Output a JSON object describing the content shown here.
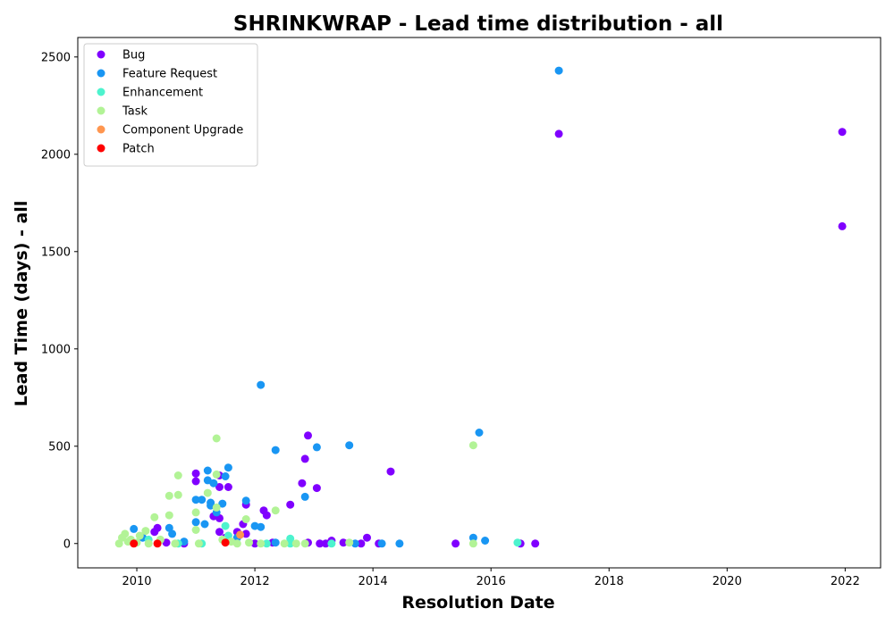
{
  "chart_data": {
    "type": "scatter",
    "title": "SHRINKWRAP - Lead time distribution - all",
    "xlabel": "Resolution Date",
    "ylabel": "Lead Time (days) - all",
    "xlim": [
      2009.0,
      2022.6
    ],
    "ylim": [
      -125,
      2600
    ],
    "xticks": [
      2010,
      2012,
      2014,
      2016,
      2018,
      2020,
      2022
    ],
    "yticks": [
      0,
      500,
      1000,
      1500,
      2000,
      2500
    ],
    "grid": false,
    "legend_position": "top-left",
    "series": [
      {
        "name": "Bug",
        "color": "#8000ff",
        "points": [
          [
            2010.3,
            60
          ],
          [
            2010.35,
            80
          ],
          [
            2010.5,
            5
          ],
          [
            2010.8,
            0
          ],
          [
            2011.0,
            360
          ],
          [
            2011.0,
            320
          ],
          [
            2011.3,
            140
          ],
          [
            2011.4,
            130
          ],
          [
            2011.4,
            290
          ],
          [
            2011.4,
            350
          ],
          [
            2011.4,
            60
          ],
          [
            2011.5,
            30
          ],
          [
            2011.55,
            290
          ],
          [
            2011.7,
            60
          ],
          [
            2011.8,
            100
          ],
          [
            2011.85,
            200
          ],
          [
            2011.85,
            50
          ],
          [
            2012.0,
            0
          ],
          [
            2012.15,
            170
          ],
          [
            2012.2,
            145
          ],
          [
            2012.3,
            5
          ],
          [
            2012.6,
            200
          ],
          [
            2012.8,
            310
          ],
          [
            2012.85,
            435
          ],
          [
            2012.9,
            555
          ],
          [
            2012.9,
            5
          ],
          [
            2013.05,
            285
          ],
          [
            2013.1,
            0
          ],
          [
            2013.2,
            0
          ],
          [
            2013.3,
            15
          ],
          [
            2013.5,
            5
          ],
          [
            2013.8,
            0
          ],
          [
            2013.9,
            30
          ],
          [
            2014.1,
            0
          ],
          [
            2014.3,
            370
          ],
          [
            2015.4,
            0
          ],
          [
            2016.5,
            0
          ],
          [
            2016.75,
            0
          ],
          [
            2017.15,
            2105
          ],
          [
            2021.95,
            2115
          ],
          [
            2021.95,
            1630
          ]
        ]
      },
      {
        "name": "Feature Request",
        "color": "#1996f3",
        "points": [
          [
            2009.95,
            75
          ],
          [
            2010.1,
            30
          ],
          [
            2010.55,
            80
          ],
          [
            2010.6,
            50
          ],
          [
            2010.8,
            10
          ],
          [
            2011.0,
            225
          ],
          [
            2011.0,
            110
          ],
          [
            2011.1,
            225
          ],
          [
            2011.15,
            100
          ],
          [
            2011.2,
            375
          ],
          [
            2011.2,
            325
          ],
          [
            2011.25,
            210
          ],
          [
            2011.25,
            195
          ],
          [
            2011.3,
            310
          ],
          [
            2011.35,
            160
          ],
          [
            2011.45,
            205
          ],
          [
            2011.5,
            345
          ],
          [
            2011.55,
            390
          ],
          [
            2011.7,
            30
          ],
          [
            2011.85,
            220
          ],
          [
            2012.0,
            90
          ],
          [
            2012.1,
            85
          ],
          [
            2012.1,
            815
          ],
          [
            2012.35,
            480
          ],
          [
            2012.35,
            5
          ],
          [
            2012.85,
            240
          ],
          [
            2013.05,
            495
          ],
          [
            2013.6,
            505
          ],
          [
            2013.7,
            0
          ],
          [
            2014.15,
            0
          ],
          [
            2014.45,
            0
          ],
          [
            2015.7,
            30
          ],
          [
            2015.8,
            570
          ],
          [
            2015.9,
            15
          ],
          [
            2017.15,
            2430
          ]
        ]
      },
      {
        "name": "Enhancement",
        "color": "#4df3ce",
        "points": [
          [
            2010.2,
            20
          ],
          [
            2010.7,
            0
          ],
          [
            2011.1,
            0
          ],
          [
            2011.5,
            90
          ],
          [
            2011.55,
            40
          ],
          [
            2012.2,
            0
          ],
          [
            2012.6,
            25
          ],
          [
            2012.6,
            0
          ],
          [
            2013.3,
            0
          ],
          [
            2016.45,
            5
          ]
        ]
      },
      {
        "name": "Task",
        "color": "#b2f396",
        "points": [
          [
            2009.7,
            0
          ],
          [
            2009.75,
            30
          ],
          [
            2009.8,
            50
          ],
          [
            2009.85,
            10
          ],
          [
            2009.9,
            20
          ],
          [
            2010.0,
            5
          ],
          [
            2010.05,
            40
          ],
          [
            2010.15,
            65
          ],
          [
            2010.2,
            0
          ],
          [
            2010.3,
            135
          ],
          [
            2010.4,
            20
          ],
          [
            2010.55,
            245
          ],
          [
            2010.55,
            145
          ],
          [
            2010.65,
            0
          ],
          [
            2010.7,
            350
          ],
          [
            2010.7,
            250
          ],
          [
            2011.0,
            160
          ],
          [
            2011.0,
            70
          ],
          [
            2011.05,
            0
          ],
          [
            2011.2,
            260
          ],
          [
            2011.35,
            540
          ],
          [
            2011.35,
            355
          ],
          [
            2011.35,
            185
          ],
          [
            2011.45,
            20
          ],
          [
            2011.6,
            10
          ],
          [
            2011.7,
            0
          ],
          [
            2011.85,
            125
          ],
          [
            2011.9,
            5
          ],
          [
            2012.1,
            0
          ],
          [
            2012.35,
            170
          ],
          [
            2012.5,
            0
          ],
          [
            2012.7,
            0
          ],
          [
            2012.85,
            0
          ],
          [
            2013.6,
            5
          ],
          [
            2015.7,
            505
          ],
          [
            2015.7,
            0
          ]
        ]
      },
      {
        "name": "Component Upgrade",
        "color": "#ff964f",
        "points": [
          [
            2011.75,
            45
          ]
        ]
      },
      {
        "name": "Patch",
        "color": "#ff0000",
        "points": [
          [
            2009.95,
            0
          ],
          [
            2010.35,
            0
          ],
          [
            2011.5,
            5
          ]
        ]
      }
    ]
  }
}
